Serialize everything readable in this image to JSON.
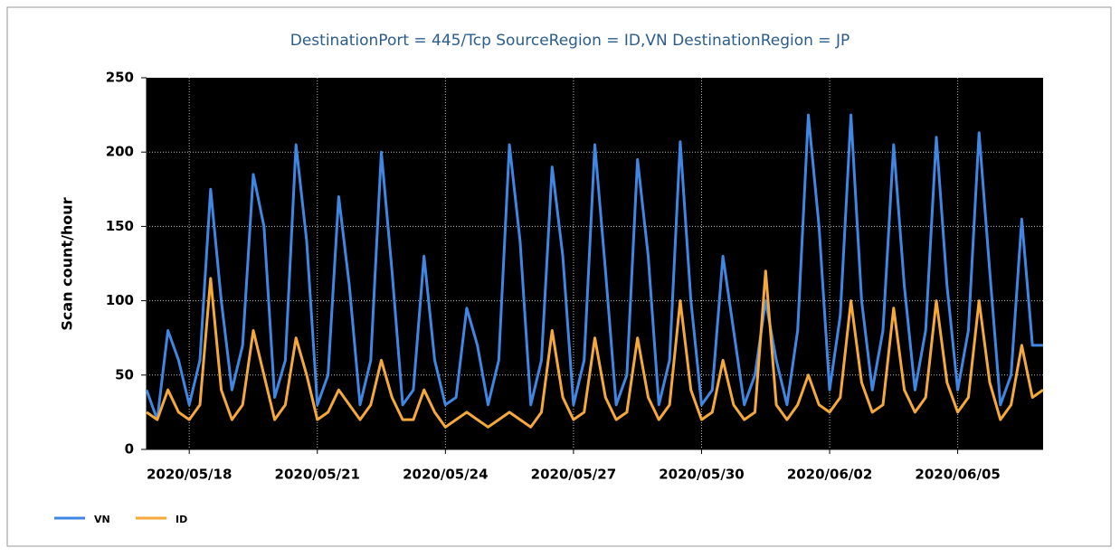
{
  "chart_data": {
    "type": "line",
    "title": "DestinationPort = 445/Tcp SourceRegion = ID,VN DestinationRegion = JP",
    "y_label": "Scan count/hour",
    "categories": [
      null,
      null,
      null,
      null,
      "2020/05/18",
      null,
      null,
      null,
      null,
      null,
      null,
      null,
      null,
      null,
      null,
      null,
      "2020/05/21",
      null,
      null,
      null,
      null,
      null,
      null,
      null,
      null,
      null,
      null,
      null,
      "2020/05/24",
      null,
      null,
      null,
      null,
      null,
      null,
      null,
      null,
      null,
      null,
      null,
      "2020/05/27",
      null,
      null,
      null,
      null,
      null,
      null,
      null,
      null,
      null,
      null,
      null,
      "2020/05/30",
      null,
      null,
      null,
      null,
      null,
      null,
      null,
      null,
      null,
      null,
      null,
      "2020/06/02",
      null,
      null,
      null,
      null,
      null,
      null,
      null,
      null,
      null,
      null,
      null,
      "2020/06/05",
      null,
      null,
      null,
      null,
      null,
      null,
      null,
      null
    ],
    "series": [
      {
        "name": "VN",
        "color": "#3f87e3",
        "values": [
          40,
          20,
          80,
          60,
          30,
          60,
          175,
          100,
          40,
          70,
          185,
          150,
          35,
          60,
          205,
          140,
          30,
          50,
          170,
          110,
          30,
          60,
          200,
          120,
          30,
          40,
          130,
          60,
          30,
          35,
          95,
          70,
          30,
          60,
          205,
          140,
          30,
          60,
          190,
          130,
          30,
          60,
          205,
          120,
          30,
          50,
          195,
          130,
          30,
          60,
          207,
          100,
          30,
          40,
          130,
          80,
          30,
          50,
          100,
          60,
          30,
          80,
          225,
          150,
          40,
          90,
          225,
          100,
          40,
          80,
          205,
          110,
          40,
          80,
          210,
          110,
          40,
          80,
          213,
          120,
          30,
          50,
          155,
          70,
          70
        ]
      },
      {
        "name": "ID",
        "color": "#f5a93a",
        "values": [
          25,
          20,
          40,
          25,
          20,
          30,
          115,
          40,
          20,
          30,
          80,
          50,
          20,
          30,
          75,
          50,
          20,
          25,
          40,
          30,
          20,
          30,
          60,
          35,
          20,
          20,
          40,
          25,
          15,
          20,
          25,
          20,
          15,
          20,
          25,
          20,
          15,
          25,
          80,
          35,
          20,
          25,
          75,
          35,
          20,
          25,
          75,
          35,
          20,
          30,
          100,
          40,
          20,
          25,
          60,
          30,
          20,
          25,
          120,
          30,
          20,
          30,
          50,
          30,
          25,
          35,
          100,
          45,
          25,
          30,
          95,
          40,
          25,
          35,
          100,
          45,
          25,
          35,
          100,
          45,
          20,
          30,
          70,
          35,
          40
        ]
      }
    ],
    "ylim": [
      0,
      250
    ],
    "yticks": [
      0,
      50,
      100,
      150,
      200,
      250
    ],
    "grid": true,
    "legend": "bottom-left",
    "background": "#000000"
  }
}
